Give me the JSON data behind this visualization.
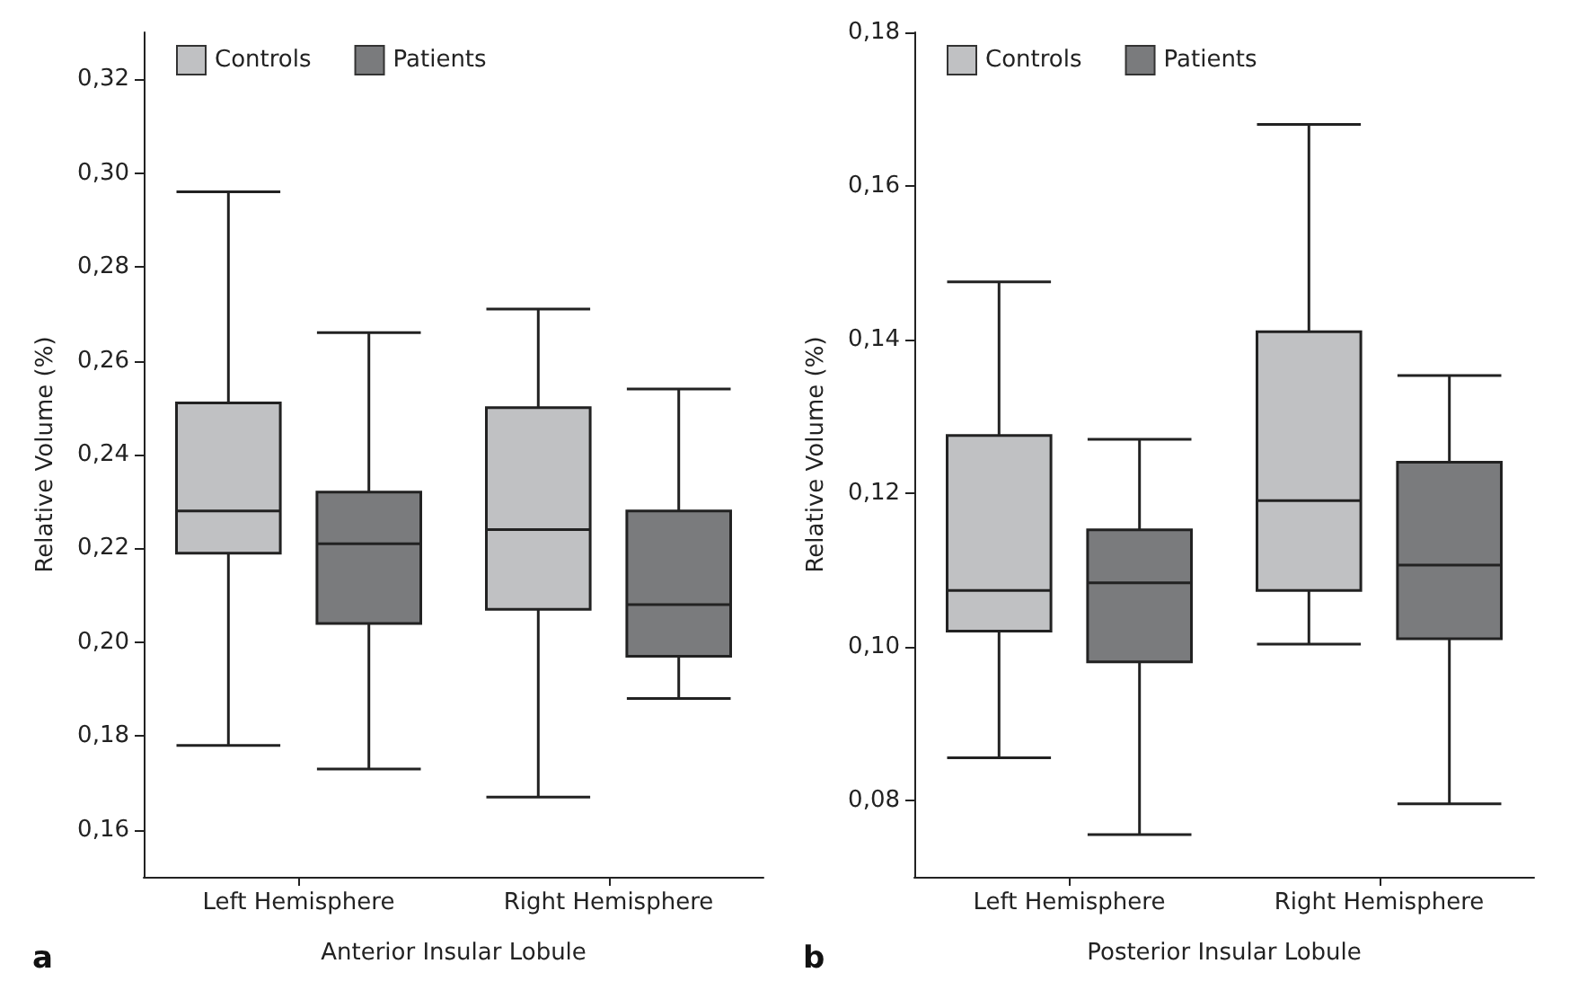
{
  "chart_data": [
    {
      "type": "box",
      "xlabel": "Anterior Insular Lobule",
      "ylabel": "Relative Volume (%)",
      "annotations": [
        "a"
      ],
      "categories": [
        "Left Hemisphere",
        "Right Hemisphere"
      ],
      "series": [
        {
          "name": "Controls",
          "color": "#c0c1c3",
          "boxes": [
            {
              "low": 0.178,
              "q1": 0.219,
              "median": 0.228,
              "q3": 0.251,
              "high": 0.296
            },
            {
              "low": 0.167,
              "q1": 0.207,
              "median": 0.224,
              "q3": 0.25,
              "high": 0.271
            }
          ]
        },
        {
          "name": "Patients",
          "color": "#7a7b7d",
          "boxes": [
            {
              "low": 0.173,
              "q1": 0.204,
              "median": 0.221,
              "q3": 0.232,
              "high": 0.266
            },
            {
              "low": 0.188,
              "q1": 0.197,
              "median": 0.208,
              "q3": 0.228,
              "high": 0.254
            }
          ]
        }
      ],
      "ylim": [
        0.15,
        0.33
      ],
      "yticks": [
        {
          "value": 0.16,
          "label": "0,16"
        },
        {
          "value": 0.18,
          "label": "0,18"
        },
        {
          "value": 0.2,
          "label": "0,20"
        },
        {
          "value": 0.22,
          "label": "0,22"
        },
        {
          "value": 0.24,
          "label": "0,24"
        },
        {
          "value": 0.26,
          "label": "0,26"
        },
        {
          "value": 0.28,
          "label": "0,28"
        },
        {
          "value": 0.3,
          "label": "0,30"
        },
        {
          "value": 0.32,
          "label": "0,32"
        }
      ],
      "legend": "top left",
      "grid": false
    },
    {
      "type": "box",
      "xlabel": "Posterior Insular Lobule",
      "ylabel": "Relative Volume (%)",
      "annotations": [
        "b"
      ],
      "categories": [
        "Left Hemisphere",
        "Right Hemisphere"
      ],
      "series": [
        {
          "name": "Controls",
          "color": "#c0c1c3",
          "boxes": [
            {
              "low": 0.0855,
              "q1": 0.102,
              "median": 0.1073,
              "q3": 0.1275,
              "high": 0.1475
            },
            {
              "low": 0.1003,
              "q1": 0.1073,
              "median": 0.119,
              "q3": 0.141,
              "high": 0.168
            }
          ]
        },
        {
          "name": "Patients",
          "color": "#7a7b7d",
          "boxes": [
            {
              "low": 0.0755,
              "q1": 0.098,
              "median": 0.1083,
              "q3": 0.1152,
              "high": 0.127
            },
            {
              "low": 0.0795,
              "q1": 0.101,
              "median": 0.1106,
              "q3": 0.124,
              "high": 0.1353
            }
          ]
        }
      ],
      "ylim": [
        0.07,
        0.18
      ],
      "yticks": [
        {
          "value": 0.08,
          "label": "0,08"
        },
        {
          "value": 0.1,
          "label": "0,10"
        },
        {
          "value": 0.12,
          "label": "0,12"
        },
        {
          "value": 0.14,
          "label": "0,14"
        },
        {
          "value": 0.16,
          "label": "0,16"
        },
        {
          "value": 0.18,
          "label": "0,18"
        }
      ],
      "legend": "top left",
      "grid": false
    }
  ]
}
